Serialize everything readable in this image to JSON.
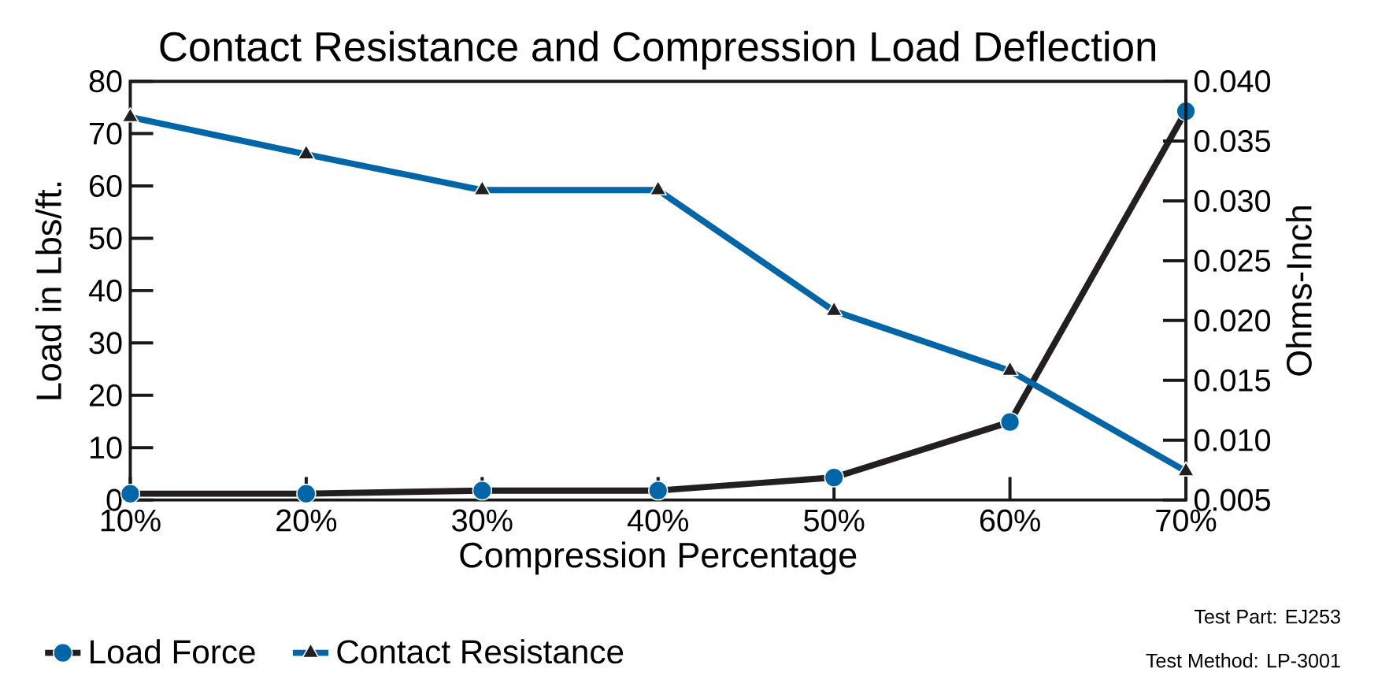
{
  "chart_data": {
    "type": "line",
    "title": "Contact Resistance and Compression Load Deflection",
    "categories": [
      "10%",
      "20%",
      "30%",
      "40%",
      "50%",
      "60%",
      "70%"
    ],
    "xlabel": "Compression Percentage",
    "ylabel": "Load in Lbs/ft.",
    "y2label": "Ohms-Inch",
    "series": [
      {
        "name": "Load Force",
        "color": "#231f20",
        "marker": "circle",
        "values": [
          1.2,
          1.2,
          1.8,
          1.8,
          4.3,
          14.9,
          74.3
        ]
      },
      {
        "name": "Contact Resistance",
        "color": "#0066a8",
        "marker": "triangle",
        "axis": "y2",
        "values": [
          0.037,
          0.0339,
          0.0309,
          0.0309,
          0.0208,
          0.0158,
          0.0074
        ]
      }
    ],
    "ylim": [
      0,
      80
    ],
    "yticks": [
      0,
      10,
      20,
      30,
      40,
      50,
      60,
      70,
      80
    ],
    "y2lim": [
      0.005,
      0.04
    ],
    "y2ticks": [
      {
        "value": 0.005,
        "label": "0.005"
      },
      {
        "value": 0.01,
        "label": "0.010"
      },
      {
        "value": 0.015,
        "label": "0.015"
      },
      {
        "value": 0.02,
        "label": "0.020"
      },
      {
        "value": 0.025,
        "label": "0.025"
      },
      {
        "value": 0.03,
        "label": "0.030"
      },
      {
        "value": 0.035,
        "label": "0.035"
      },
      {
        "value": 0.04,
        "label": "0.040"
      }
    ],
    "legend": "bottom left",
    "grid": false,
    "line_style": "solid",
    "annotations": [
      "Test Part: EJ253",
      "Test Method: LP-3001"
    ]
  }
}
